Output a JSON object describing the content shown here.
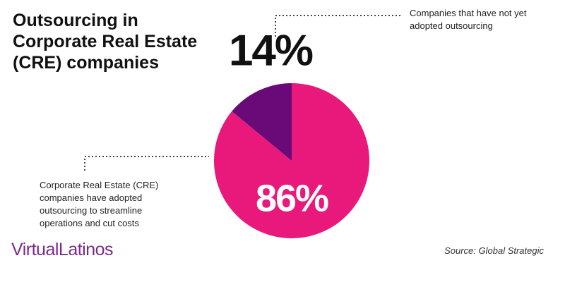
{
  "chart_data": {
    "type": "pie",
    "title": [
      "Outsourcing in",
      "Corporate Real Estate",
      "(CRE) companies"
    ],
    "categories": [
      "Corporate Real Estate (CRE) companies have adopted outsourcing to streamline operations and cut costs",
      "Companies that have not yet adopted outsourcing"
    ],
    "values": [
      86,
      14
    ],
    "value_labels": [
      "86%",
      "14%"
    ],
    "colors": [
      "#e8197a",
      "#6a0a78"
    ],
    "logo": "VirtualLatinos",
    "source": "Source: Global Strategic"
  }
}
